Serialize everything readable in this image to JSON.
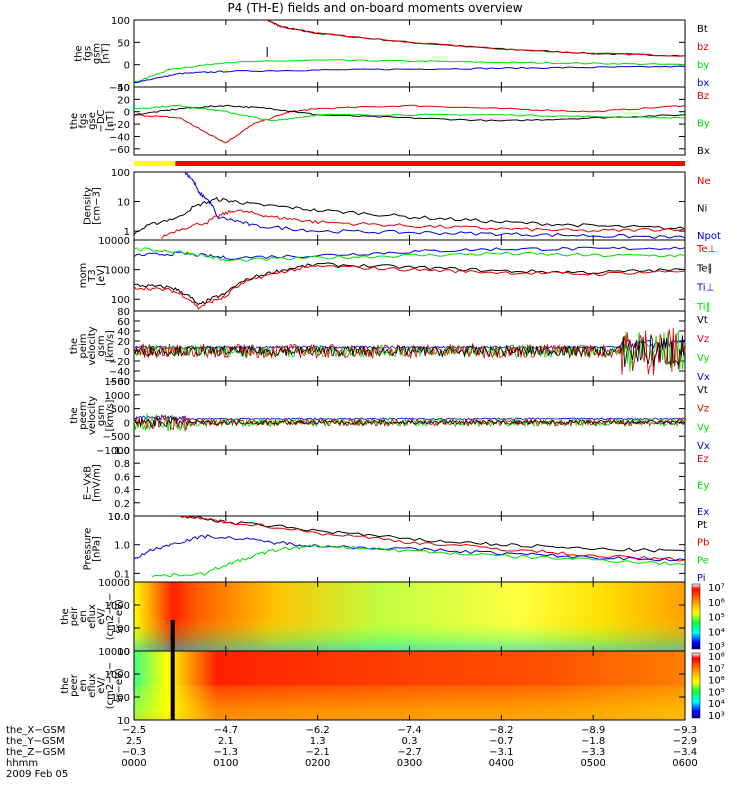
{
  "title": "P4 (TH-E) fields and on-board moments overview",
  "colors": {
    "black": "#000000",
    "red": "#e00000",
    "green": "#00dd00",
    "blue": "#0000dd",
    "yellow": "#ffff00",
    "bar_red": "#ff0000"
  },
  "chart_data": {
    "type": "line",
    "time_range_hours": [
      0,
      6
    ],
    "panels": [
      {
        "id": "fgs-gsm",
        "ylabel": [
          "the",
          "fgs",
          "gsm",
          "[nT]"
        ],
        "ylim": [
          -50,
          100
        ],
        "yticks": [
          "100",
          "50",
          "0",
          "−50"
        ],
        "legend": [
          "Bt",
          "bz",
          "by",
          "bx"
        ],
        "series": [
          {
            "name": "Bt",
            "color": "black",
            "points": [
              [
                1.45,
                100
              ],
              [
                1.6,
                85
              ],
              [
                2,
                70
              ],
              [
                3,
                50
              ],
              [
                4,
                35
              ],
              [
                5,
                25
              ],
              [
                6,
                20
              ]
            ]
          },
          {
            "name": "bz",
            "color": "red",
            "points": [
              [
                1.45,
                100
              ],
              [
                1.6,
                85
              ],
              [
                2,
                70
              ],
              [
                3,
                50
              ],
              [
                4,
                35
              ],
              [
                5,
                25
              ],
              [
                6,
                20
              ]
            ]
          },
          {
            "name": "by",
            "color": "green",
            "points": [
              [
                0,
                -40
              ],
              [
                0.4,
                -10
              ],
              [
                1,
                5
              ],
              [
                2,
                10
              ],
              [
                3,
                8
              ],
              [
                4,
                5
              ],
              [
                5,
                3
              ],
              [
                6,
                0
              ]
            ]
          },
          {
            "name": "bx",
            "color": "blue",
            "points": [
              [
                0,
                -40
              ],
              [
                0.5,
                -20
              ],
              [
                1,
                -15
              ],
              [
                2,
                -12
              ],
              [
                3,
                -10
              ],
              [
                4,
                -8
              ],
              [
                5,
                -6
              ],
              [
                6,
                -4
              ]
            ]
          }
        ]
      },
      {
        "id": "fgs-gse",
        "ylabel": [
          "the",
          "fgs",
          "gse",
          "−DC",
          "[nT]"
        ],
        "ylim": [
          -70,
          40
        ],
        "yticks": [
          "40",
          "20",
          "0",
          "−20",
          "−40",
          "−60"
        ],
        "legend": [
          "Bz",
          "By",
          "Bx"
        ],
        "series": [
          {
            "name": "Bz",
            "color": "red",
            "points": [
              [
                0,
                -5
              ],
              [
                0.5,
                -10
              ],
              [
                0.8,
                -35
              ],
              [
                1,
                -50
              ],
              [
                1.3,
                -20
              ],
              [
                1.7,
                0
              ],
              [
                2,
                5
              ],
              [
                3,
                10
              ],
              [
                4,
                5
              ],
              [
                5,
                0
              ],
              [
                6,
                10
              ]
            ]
          },
          {
            "name": "Bx",
            "color": "black",
            "points": [
              [
                0,
                -5
              ],
              [
                0.5,
                5
              ],
              [
                1,
                10
              ],
              [
                1.5,
                5
              ],
              [
                2,
                -5
              ],
              [
                3,
                -10
              ],
              [
                4,
                -15
              ],
              [
                5,
                -10
              ],
              [
                6,
                -5
              ]
            ]
          },
          {
            "name": "By",
            "color": "green",
            "points": [
              [
                0,
                5
              ],
              [
                0.5,
                10
              ],
              [
                1,
                0
              ],
              [
                1.5,
                -15
              ],
              [
                2,
                -5
              ],
              [
                3,
                -5
              ],
              [
                4,
                -5
              ],
              [
                5,
                -8
              ],
              [
                6,
                -10
              ]
            ]
          }
        ]
      },
      {
        "id": "density",
        "ylabel": [
          "Density",
          "[cm−3]"
        ],
        "scale": "log",
        "ylim": [
          0.5,
          100
        ],
        "yticks": [
          "100",
          "10",
          "1"
        ],
        "legend": [
          "Ne",
          "Ni",
          "Npot"
        ],
        "series": [
          {
            "name": "Ni",
            "color": "black",
            "points": [
              [
                0,
                0.8
              ],
              [
                0.5,
                3
              ],
              [
                0.9,
                12
              ],
              [
                1.3,
                8
              ],
              [
                2,
                5
              ],
              [
                3,
                3
              ],
              [
                4,
                2
              ],
              [
                5,
                1.5
              ],
              [
                6,
                1.2
              ]
            ]
          },
          {
            "name": "Ne",
            "color": "red",
            "points": [
              [
                0.3,
                0.6
              ],
              [
                0.8,
                2
              ],
              [
                1.1,
                5
              ],
              [
                1.5,
                3
              ],
              [
                2,
                2
              ],
              [
                3,
                1.5
              ],
              [
                4,
                1.2
              ],
              [
                5,
                1
              ],
              [
                6,
                1.2
              ]
            ]
          },
          {
            "name": "Npot",
            "color": "blue",
            "points": [
              [
                0.55,
                100
              ],
              [
                0.7,
                20
              ],
              [
                0.9,
                3
              ],
              [
                1.3,
                1.5
              ],
              [
                2,
                1
              ],
              [
                3,
                0.9
              ],
              [
                4,
                0.8
              ],
              [
                5,
                0.7
              ],
              [
                6,
                0.6
              ]
            ]
          }
        ]
      },
      {
        "id": "mom-temp",
        "ylabel": [
          "mom",
          "T3",
          "[eV]"
        ],
        "scale": "log",
        "ylim": [
          40,
          10000
        ],
        "yticks": [
          "10000",
          "1000",
          "100"
        ],
        "legend": [
          "Te⊥",
          "Te∥",
          "Ti⊥",
          "Ti∥"
        ],
        "series": [
          {
            "name": "Ti⊥",
            "color": "blue",
            "points": [
              [
                0,
                3000
              ],
              [
                0.5,
                3500
              ],
              [
                1,
                2500
              ],
              [
                2,
                3000
              ],
              [
                3,
                4000
              ],
              [
                4,
                5000
              ],
              [
                5,
                5000
              ],
              [
                6,
                5500
              ]
            ]
          },
          {
            "name": "Ti∥",
            "color": "green",
            "points": [
              [
                0,
                5000
              ],
              [
                0.5,
                4000
              ],
              [
                1,
                2000
              ],
              [
                2,
                2500
              ],
              [
                3,
                3000
              ],
              [
                4,
                3500
              ],
              [
                5,
                3000
              ],
              [
                6,
                3000
              ]
            ]
          },
          {
            "name": "Te∥",
            "color": "black",
            "points": [
              [
                0,
                300
              ],
              [
                0.4,
                250
              ],
              [
                0.7,
                60
              ],
              [
                1,
                150
              ],
              [
                1.5,
                800
              ],
              [
                2,
                1500
              ],
              [
                3,
                1200
              ],
              [
                4,
                900
              ],
              [
                5,
                800
              ],
              [
                6,
                1000
              ]
            ]
          },
          {
            "name": "Te⊥",
            "color": "red",
            "points": [
              [
                0,
                250
              ],
              [
                0.4,
                200
              ],
              [
                0.7,
                50
              ],
              [
                1,
                120
              ],
              [
                1.5,
                700
              ],
              [
                2,
                1300
              ],
              [
                3,
                1000
              ],
              [
                4,
                800
              ],
              [
                5,
                700
              ],
              [
                6,
                900
              ]
            ]
          }
        ]
      },
      {
        "id": "peim-velocity",
        "ylabel": [
          "the",
          "peim",
          "velocity",
          "gsm",
          "[km/s]"
        ],
        "ylim": [
          -60,
          80
        ],
        "yticks": [
          "80",
          "60",
          "40",
          "20",
          "0",
          "−20",
          "−40",
          "−60"
        ],
        "legend": [
          "Vt",
          "Vz",
          "Vy",
          "Vx"
        ]
      },
      {
        "id": "peem-velocity",
        "ylabel": [
          "the",
          "peem",
          "velocity",
          "gsm",
          "[km/s]"
        ],
        "ylim": [
          -1000,
          1500
        ],
        "yticks": [
          "1500",
          "1000",
          "500",
          "0",
          "−500",
          "−1000"
        ],
        "legend": [
          "Vt",
          "Vz",
          "Vy",
          "Vx"
        ]
      },
      {
        "id": "e-vxb",
        "ylabel": [
          "E−VxB",
          "[mV/m]"
        ],
        "ylim": [
          0,
          1
        ],
        "yticks": [
          "1.0",
          "0.8",
          "0.6",
          "0.4",
          "0.2",
          "0.0"
        ],
        "legend": [
          "Ez",
          "Ey",
          "Ex"
        ]
      },
      {
        "id": "pressure",
        "ylabel": [
          "Pressure",
          "[nPa]"
        ],
        "scale": "log",
        "ylim": [
          0.05,
          10
        ],
        "yticks": [
          "10.0",
          "1.0",
          "0.1"
        ],
        "legend": [
          "Pt",
          "Pb",
          "Pe",
          "Pi"
        ],
        "series": [
          {
            "name": "Pt",
            "color": "black",
            "points": [
              [
                0.5,
                10
              ],
              [
                1,
                6
              ],
              [
                2,
                3
              ],
              [
                3,
                1.5
              ],
              [
                4,
                1
              ],
              [
                5,
                0.7
              ],
              [
                6,
                0.6
              ]
            ]
          },
          {
            "name": "Pb",
            "color": "red",
            "points": [
              [
                0.5,
                10
              ],
              [
                1,
                6
              ],
              [
                2,
                2.5
              ],
              [
                3,
                1.2
              ],
              [
                4,
                0.7
              ],
              [
                5,
                0.4
              ],
              [
                6,
                0.3
              ]
            ]
          },
          {
            "name": "Pi",
            "color": "blue",
            "points": [
              [
                0,
                0.3
              ],
              [
                0.4,
                1
              ],
              [
                0.8,
                2
              ],
              [
                1.5,
                1.2
              ],
              [
                2,
                0.9
              ],
              [
                3,
                0.7
              ],
              [
                4,
                0.5
              ],
              [
                5,
                0.35
              ],
              [
                6,
                0.3
              ]
            ]
          },
          {
            "name": "Pe",
            "color": "green",
            "points": [
              [
                0.2,
                0.08
              ],
              [
                0.8,
                0.1
              ],
              [
                1.2,
                0.3
              ],
              [
                1.6,
                0.7
              ],
              [
                2,
                0.9
              ],
              [
                3,
                0.6
              ],
              [
                4,
                0.4
              ],
              [
                5,
                0.3
              ],
              [
                6,
                0.2
              ]
            ]
          }
        ]
      },
      {
        "id": "peir-en-eflux",
        "ylabel": [
          "the",
          "peir",
          "en",
          "eflux",
          "eV/",
          "(cm2−s−",
          "sr−eV)"
        ],
        "scale": "log",
        "ylim": [
          10,
          10000
        ],
        "yticks": [
          "10000",
          "1000",
          "100",
          "10"
        ],
        "colorbar_ticks": [
          "10⁷",
          "10⁶",
          "10⁵",
          "10⁴",
          "10³"
        ]
      },
      {
        "id": "peer-en-eflux",
        "ylabel": [
          "the",
          "peer",
          "en",
          "eflux",
          "eV/",
          "(cm2−s−",
          "sr−eV)"
        ],
        "scale": "log",
        "ylim": [
          10,
          10000
        ],
        "yticks": [
          "10000",
          "1000",
          "100",
          "10"
        ],
        "colorbar_ticks": [
          "10⁸",
          "10⁷",
          "10⁶",
          "10⁵",
          "10⁴",
          "10³"
        ]
      }
    ],
    "x_axis": {
      "rows": [
        {
          "label": "the_X−GSM",
          "values": [
            "−2.5",
            "−4.7",
            "−6.2",
            "−7.4",
            "−8.2",
            "−8.9",
            "−9.3"
          ]
        },
        {
          "label": "the_Y−GSM",
          "values": [
            "2.5",
            "2.1",
            "1.3",
            "0.3",
            "−0.7",
            "−1.8",
            "−2.9"
          ]
        },
        {
          "label": "the_Z−GSM",
          "values": [
            "−0.3",
            "−1.3",
            "−2.1",
            "−2.7",
            "−3.1",
            "−3.3",
            "−3.4"
          ]
        },
        {
          "label": "hhmm",
          "values": [
            "0000",
            "0100",
            "0200",
            "0300",
            "0400",
            "0500",
            "0600"
          ]
        }
      ],
      "date": "2009 Feb 05"
    }
  }
}
